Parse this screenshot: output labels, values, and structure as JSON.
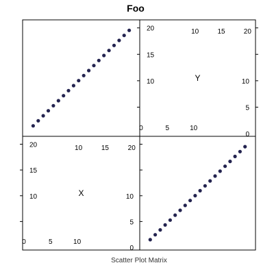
{
  "chart_data": {
    "type": "scatter",
    "title": "Foo",
    "subtitle": "Scatter Plot Matrix",
    "variables": [
      "X",
      "Y"
    ],
    "axis_range": [
      0,
      21
    ],
    "grid": false,
    "legend": "none",
    "point_color": "#23234f",
    "series": [
      {
        "x": [
          1,
          2,
          3,
          4,
          5,
          6,
          7,
          8,
          9,
          10,
          11,
          12,
          13,
          14,
          15,
          16,
          17,
          18,
          19,
          20
        ],
        "y": [
          1,
          2,
          3,
          4,
          5,
          6,
          7,
          8,
          9,
          10,
          11,
          12,
          13,
          14,
          15,
          16,
          17,
          18,
          19,
          20
        ]
      }
    ],
    "diag_ticks": {
      "Y": {
        "top": [
          "10",
          "15",
          "20"
        ],
        "left": [
          "20",
          "15",
          "10"
        ],
        "bottom": [
          "0",
          "5",
          "10"
        ],
        "right": [
          "10",
          "5",
          "0"
        ]
      },
      "X": {
        "top": [
          "10",
          "15",
          "20"
        ],
        "left": [
          "20",
          "15",
          "10"
        ],
        "bottom": [
          "0",
          "5",
          "10"
        ],
        "right": [
          "10",
          "5",
          "0"
        ]
      }
    }
  }
}
